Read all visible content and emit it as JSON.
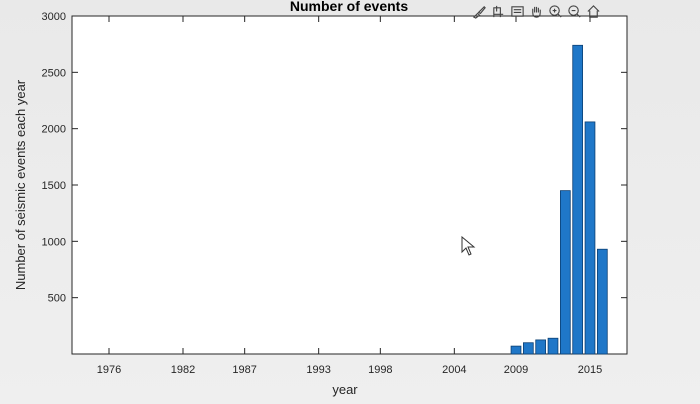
{
  "chart_data": {
    "type": "bar",
    "title": "Number of events",
    "xlabel": "year",
    "ylabel": "Number of seismic events each year",
    "xlim": [
      1973,
      2018
    ],
    "ylim": [
      0,
      3000
    ],
    "x_ticks": [
      "1976",
      "1982",
      "1987",
      "1993",
      "1998",
      "2004",
      "2009",
      "2015"
    ],
    "x_tick_values": [
      1976,
      1982,
      1987,
      1993,
      1998,
      2004,
      2009,
      2015
    ],
    "y_ticks": [
      "500",
      "1000",
      "1500",
      "2000",
      "2500",
      "3000"
    ],
    "y_tick_values": [
      500,
      1000,
      1500,
      2000,
      2500,
      3000
    ],
    "x": [
      2009,
      2010,
      2011,
      2012,
      2013,
      2014,
      2015,
      2016
    ],
    "values": [
      70,
      100,
      125,
      140,
      1450,
      2740,
      2060,
      930
    ],
    "bar_color": "#1f77c8",
    "grid": false
  },
  "toolbar": {
    "icons": [
      "brush-icon",
      "data-tip-icon",
      "legend-icon",
      "pan-hand-icon",
      "zoom-in-icon",
      "zoom-out-icon",
      "home-icon"
    ]
  }
}
